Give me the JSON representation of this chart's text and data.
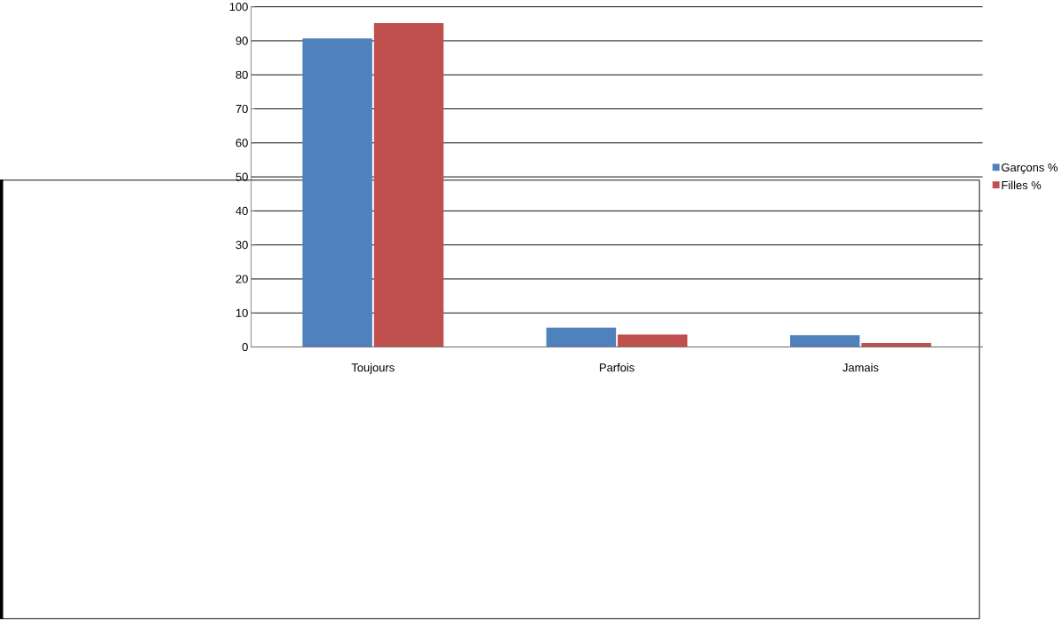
{
  "chart_data": {
    "type": "bar",
    "categories": [
      "Toujours",
      "Parfois",
      "Jamais"
    ],
    "series": [
      {
        "name": "Garçons %",
        "color": "#4f81bd",
        "values": [
          90.7,
          5.7,
          3.5
        ]
      },
      {
        "name": "Filles %",
        "color": "#c0504d",
        "values": [
          95.2,
          3.7,
          1.2
        ]
      }
    ],
    "ylim": [
      0,
      100
    ],
    "yticks": [
      0,
      10,
      20,
      30,
      40,
      50,
      60,
      70,
      80,
      90,
      100
    ],
    "grid": "y",
    "legend": "right"
  }
}
